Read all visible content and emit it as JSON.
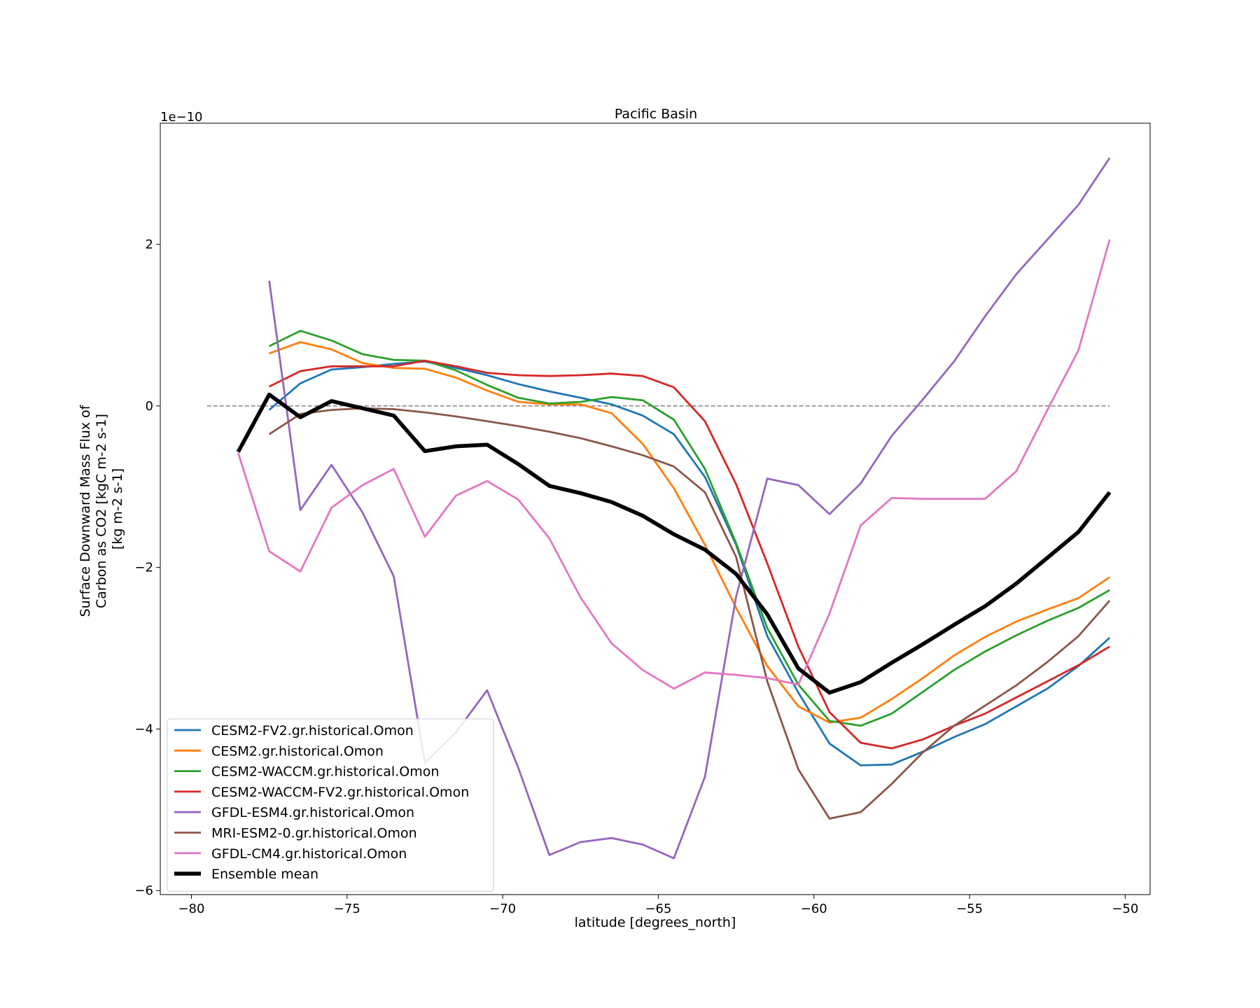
{
  "chart_data": {
    "type": "line",
    "title": "Pacific Basin",
    "xlabel": "latitude [degrees_north]",
    "ylabel": [
      "Surface Downward Mass Flux of",
      "Carbon as CO2 [kgC m-2 s-1]",
      "[kg m-2 s-1]"
    ],
    "offset_text": "1e−10",
    "xlim": [
      -81,
      -49.2
    ],
    "ylim": [
      -6.05,
      3.5
    ],
    "xticks": [
      -80,
      -75,
      -70,
      -65,
      -60,
      -55,
      -50
    ],
    "xtick_labels": [
      "−80",
      "−75",
      "−70",
      "−65",
      "−60",
      "−55",
      "−50"
    ],
    "yticks": [
      -6,
      -4,
      -2,
      0,
      2
    ],
    "ytick_labels": [
      "−6",
      "−4",
      "−2",
      "0",
      "2"
    ],
    "grid": false,
    "legend_position": "lower-left",
    "zero_line": {
      "y": 0,
      "x_range": [
        -79.5,
        -50.5
      ],
      "color": "#808080",
      "style": "dashed"
    },
    "series": [
      {
        "name": "CESM2-FV2.gr.historical.Omon",
        "color": "#1f77b4",
        "width": 2,
        "x": [
          -77.5,
          -76.5,
          -75.5,
          -74.5,
          -73.5,
          -72.5,
          -71.5,
          -70.5,
          -69.5,
          -68.5,
          -67.5,
          -66.5,
          -65.5,
          -64.5,
          -63.5,
          -62.5,
          -61.5,
          -60.5,
          -59.5,
          -58.5,
          -57.5,
          -56.5,
          -55.5,
          -54.5,
          -53.5,
          -52.5,
          -51.5,
          -50.5
        ],
        "y": [
          -0.05,
          0.28,
          0.45,
          0.48,
          0.52,
          0.55,
          0.47,
          0.38,
          0.27,
          0.18,
          0.1,
          0.02,
          -0.12,
          -0.35,
          -0.88,
          -1.72,
          -2.85,
          -3.55,
          -4.18,
          -4.45,
          -4.44,
          -4.28,
          -4.1,
          -3.94,
          -3.72,
          -3.5,
          -3.22,
          -2.87
        ]
      },
      {
        "name": "CESM2.gr.historical.Omon",
        "color": "#ff7f0e",
        "width": 2,
        "x": [
          -77.5,
          -76.5,
          -75.5,
          -74.5,
          -73.5,
          -72.5,
          -71.5,
          -70.5,
          -69.5,
          -68.5,
          -67.5,
          -66.5,
          -65.5,
          -64.5,
          -63.5,
          -62.5,
          -61.5,
          -60.5,
          -59.5,
          -58.5,
          -57.5,
          -56.5,
          -55.5,
          -54.5,
          -53.5,
          -52.5,
          -51.5,
          -50.5
        ],
        "y": [
          0.65,
          0.79,
          0.7,
          0.53,
          0.47,
          0.46,
          0.35,
          0.19,
          0.05,
          0.02,
          0.02,
          -0.09,
          -0.47,
          -1.02,
          -1.72,
          -2.5,
          -3.22,
          -3.72,
          -3.92,
          -3.86,
          -3.63,
          -3.37,
          -3.09,
          -2.86,
          -2.67,
          -2.52,
          -2.38,
          -2.12
        ]
      },
      {
        "name": "CESM2-WACCM.gr.historical.Omon",
        "color": "#2ca02c",
        "width": 2,
        "x": [
          -77.5,
          -76.5,
          -75.5,
          -74.5,
          -73.5,
          -72.5,
          -71.5,
          -70.5,
          -69.5,
          -68.5,
          -67.5,
          -66.5,
          -65.5,
          -64.5,
          -63.5,
          -62.5,
          -61.5,
          -60.5,
          -59.5,
          -58.5,
          -57.5,
          -56.5,
          -55.5,
          -54.5,
          -53.5,
          -52.5,
          -51.5,
          -50.5
        ],
        "y": [
          0.74,
          0.93,
          0.81,
          0.64,
          0.57,
          0.56,
          0.44,
          0.26,
          0.1,
          0.03,
          0.05,
          0.11,
          0.07,
          -0.17,
          -0.78,
          -1.7,
          -2.75,
          -3.45,
          -3.9,
          -3.96,
          -3.81,
          -3.54,
          -3.27,
          -3.04,
          -2.84,
          -2.66,
          -2.5,
          -2.28
        ]
      },
      {
        "name": "CESM2-WACCM-FV2.gr.historical.Omon",
        "color": "#d62728",
        "width": 2,
        "x": [
          -77.5,
          -76.5,
          -75.5,
          -74.5,
          -73.5,
          -72.5,
          -71.5,
          -70.5,
          -69.5,
          -68.5,
          -67.5,
          -66.5,
          -65.5,
          -64.5,
          -63.5,
          -62.5,
          -61.5,
          -60.5,
          -59.5,
          -58.5,
          -57.5,
          -56.5,
          -55.5,
          -54.5,
          -53.5,
          -52.5,
          -51.5,
          -50.5
        ],
        "y": [
          0.24,
          0.43,
          0.49,
          0.49,
          0.49,
          0.56,
          0.49,
          0.41,
          0.38,
          0.37,
          0.38,
          0.4,
          0.37,
          0.23,
          -0.19,
          -0.97,
          -1.95,
          -2.98,
          -3.79,
          -4.17,
          -4.24,
          -4.13,
          -3.96,
          -3.81,
          -3.61,
          -3.41,
          -3.21,
          -2.98
        ]
      },
      {
        "name": "GFDL-ESM4.gr.historical.Omon",
        "color": "#9467bd",
        "width": 2,
        "x": [
          -77.5,
          -76.5,
          -75.5,
          -74.5,
          -73.5,
          -72.5,
          -71.5,
          -70.5,
          -69.5,
          -68.5,
          -67.5,
          -66.5,
          -65.5,
          -64.5,
          -63.5,
          -62.5,
          -61.5,
          -60.5,
          -59.5,
          -58.5,
          -57.5,
          -56.5,
          -55.5,
          -54.5,
          -53.5,
          -52.5,
          -51.5,
          -50.5
        ],
        "y": [
          1.55,
          -1.29,
          -0.73,
          -1.32,
          -2.11,
          -4.42,
          -4.04,
          -3.52,
          -4.48,
          -5.56,
          -5.4,
          -5.35,
          -5.43,
          -5.6,
          -4.59,
          -2.36,
          -0.9,
          -0.98,
          -1.34,
          -0.96,
          -0.37,
          0.08,
          0.55,
          1.11,
          1.63,
          2.06,
          2.49,
          3.07
        ]
      },
      {
        "name": "MRI-ESM2-0.gr.historical.Omon",
        "color": "#8c564b",
        "width": 2,
        "x": [
          -77.5,
          -76.5,
          -75.5,
          -74.5,
          -73.5,
          -72.5,
          -71.5,
          -70.5,
          -69.5,
          -68.5,
          -67.5,
          -66.5,
          -65.5,
          -64.5,
          -63.5,
          -62.5,
          -61.5,
          -60.5,
          -59.5,
          -58.5,
          -57.5,
          -56.5,
          -55.5,
          -54.5,
          -53.5,
          -52.5,
          -51.5,
          -50.5
        ],
        "y": [
          -0.35,
          -0.1,
          -0.05,
          -0.03,
          -0.04,
          -0.08,
          -0.13,
          -0.19,
          -0.25,
          -0.32,
          -0.4,
          -0.5,
          -0.61,
          -0.75,
          -1.07,
          -1.87,
          -3.41,
          -4.5,
          -5.11,
          -5.03,
          -4.68,
          -4.29,
          -3.96,
          -3.71,
          -3.46,
          -3.17,
          -2.85,
          -2.41
        ]
      },
      {
        "name": "GFDL-CM4.gr.historical.Omon",
        "color": "#e377c2",
        "width": 2,
        "x": [
          -78.5,
          -77.5,
          -76.5,
          -75.5,
          -74.5,
          -73.5,
          -72.5,
          -71.5,
          -70.5,
          -69.5,
          -68.5,
          -67.5,
          -66.5,
          -65.5,
          -64.5,
          -63.5,
          -62.5,
          -61.5,
          -60.5,
          -59.5,
          -58.5,
          -57.5,
          -56.5,
          -55.5,
          -54.5,
          -53.5,
          -52.5,
          -51.5,
          -50.5
        ],
        "y": [
          -0.58,
          -1.8,
          -2.05,
          -1.26,
          -0.98,
          -0.78,
          -1.62,
          -1.11,
          -0.93,
          -1.16,
          -1.64,
          -2.37,
          -2.94,
          -3.27,
          -3.5,
          -3.3,
          -3.33,
          -3.37,
          -3.45,
          -2.57,
          -1.48,
          -1.14,
          -1.15,
          -1.15,
          -1.15,
          -0.81,
          -0.05,
          0.69,
          2.06
        ]
      },
      {
        "name": "Ensemble mean",
        "color": "#000000",
        "width": 4,
        "x": [
          -78.5,
          -77.5,
          -76.5,
          -75.5,
          -74.5,
          -73.5,
          -72.5,
          -71.5,
          -70.5,
          -69.5,
          -68.5,
          -67.5,
          -66.5,
          -65.5,
          -64.5,
          -63.5,
          -62.5,
          -61.5,
          -60.5,
          -59.5,
          -58.5,
          -57.5,
          -56.5,
          -55.5,
          -54.5,
          -53.5,
          -52.5,
          -51.5,
          -50.5
        ],
        "y": [
          -0.57,
          0.14,
          -0.14,
          0.06,
          -0.03,
          -0.12,
          -0.56,
          -0.5,
          -0.48,
          -0.72,
          -0.99,
          -1.08,
          -1.19,
          -1.36,
          -1.59,
          -1.78,
          -2.08,
          -2.58,
          -3.25,
          -3.55,
          -3.42,
          -3.18,
          -2.95,
          -2.71,
          -2.48,
          -2.2,
          -1.88,
          -1.56,
          -1.07
        ]
      }
    ]
  }
}
